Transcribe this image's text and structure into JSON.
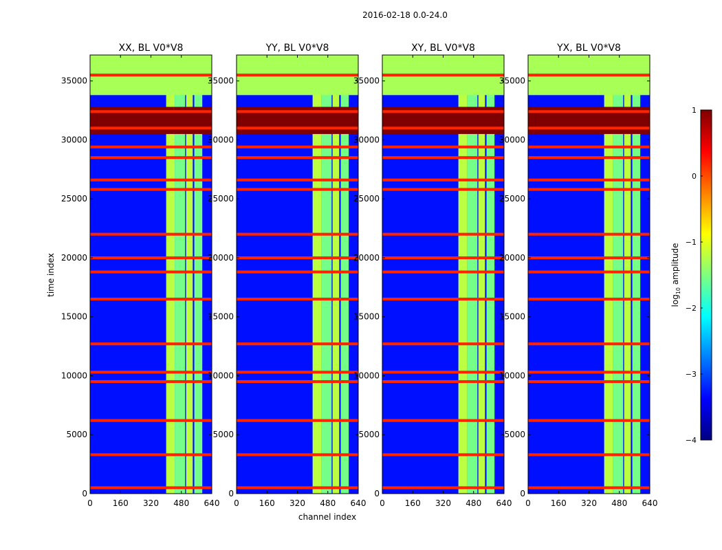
{
  "figure": {
    "suptitle": "2016-02-18 0.0-24.0",
    "xlabel": "channel index",
    "ylabel": "time index"
  },
  "colors": {
    "jet": [
      "#00007f",
      "#0000ff",
      "#007fff",
      "#00ffff",
      "#7fff7f",
      "#ffff00",
      "#ff7f00",
      "#ff0000",
      "#7f0000"
    ]
  },
  "colorbar": {
    "label": "log10 amplitude",
    "label_base": "log",
    "label_sub": "10",
    "label_rest": " amplitude",
    "vmin": -4,
    "vmax": 1,
    "ticks": [
      -4,
      -3,
      -2,
      -1,
      0,
      1
    ],
    "tick_labels": [
      "−4",
      "−3",
      "−2",
      "−1",
      "0",
      "1"
    ]
  },
  "chart_data": [
    {
      "type": "heatmap",
      "title": "XX, BL V0*V8",
      "xlim": [
        0,
        640
      ],
      "ylim": [
        0,
        37200
      ],
      "xticks": [
        0,
        160,
        320,
        480,
        640
      ],
      "yticks": [
        0,
        5000,
        10000,
        15000,
        20000,
        25000,
        30000,
        35000
      ],
      "band_channels": [
        [
          400,
          445
        ],
        [
          445,
          500
        ],
        [
          505,
          540
        ],
        [
          548,
          590
        ]
      ],
      "band_level": -1.2,
      "background_level": -3.3,
      "hot_rows": [
        500,
        3300,
        6200,
        9500,
        10300,
        12700,
        16500,
        18800,
        20000,
        22000,
        25800,
        26600,
        28500,
        29400,
        31000,
        32400,
        35500
      ],
      "saturated_time_range": [
        30500,
        32800
      ],
      "saturated_level": 1.0,
      "top_band_time_range": [
        33800,
        37200
      ],
      "top_band_level": -1.3
    },
    {
      "type": "heatmap",
      "title": "YY, BL V0*V8",
      "xlim": [
        0,
        640
      ],
      "ylim": [
        0,
        37200
      ],
      "xticks": [
        0,
        160,
        320,
        480,
        640
      ],
      "yticks": [
        0,
        5000,
        10000,
        15000,
        20000,
        25000,
        30000,
        35000
      ],
      "band_channels": [
        [
          400,
          445
        ],
        [
          445,
          500
        ],
        [
          505,
          540
        ],
        [
          548,
          590
        ]
      ],
      "band_level": -1.2,
      "background_level": -3.3,
      "hot_rows": [
        500,
        3300,
        6200,
        9500,
        10300,
        12700,
        16500,
        18800,
        20000,
        22000,
        25800,
        26600,
        28500,
        29400,
        31000,
        32400,
        35500
      ],
      "saturated_time_range": [
        30500,
        32800
      ],
      "saturated_level": 1.0,
      "top_band_time_range": [
        33800,
        37200
      ],
      "top_band_level": -1.3
    },
    {
      "type": "heatmap",
      "title": "XY, BL V0*V8",
      "xlim": [
        0,
        640
      ],
      "ylim": [
        0,
        37200
      ],
      "xticks": [
        0,
        160,
        320,
        480,
        640
      ],
      "yticks": [
        0,
        5000,
        10000,
        15000,
        20000,
        25000,
        30000,
        35000
      ],
      "band_channels": [
        [
          400,
          445
        ],
        [
          445,
          500
        ],
        [
          505,
          540
        ],
        [
          548,
          590
        ]
      ],
      "band_level": -1.2,
      "background_level": -3.3,
      "hot_rows": [
        500,
        3300,
        6200,
        9500,
        10300,
        12700,
        16500,
        18800,
        20000,
        22000,
        25800,
        26600,
        28500,
        29400,
        31000,
        32400,
        35500
      ],
      "saturated_time_range": [
        30500,
        32800
      ],
      "saturated_level": 1.0,
      "top_band_time_range": [
        33800,
        37200
      ],
      "top_band_level": -1.3
    },
    {
      "type": "heatmap",
      "title": "YX, BL V0*V8",
      "xlim": [
        0,
        640
      ],
      "ylim": [
        0,
        37200
      ],
      "xticks": [
        0,
        160,
        320,
        480,
        640
      ],
      "yticks": [
        0,
        5000,
        10000,
        15000,
        20000,
        25000,
        30000,
        35000
      ],
      "band_channels": [
        [
          400,
          445
        ],
        [
          445,
          500
        ],
        [
          505,
          540
        ],
        [
          548,
          590
        ]
      ],
      "band_level": -1.2,
      "background_level": -3.3,
      "hot_rows": [
        500,
        3300,
        6200,
        9500,
        10300,
        12700,
        16500,
        18800,
        20000,
        22000,
        25800,
        26600,
        28500,
        29400,
        31000,
        32400,
        35500
      ],
      "saturated_time_range": [
        30500,
        32800
      ],
      "saturated_level": 1.0,
      "top_band_time_range": [
        33800,
        37200
      ],
      "top_band_level": -1.3
    }
  ]
}
